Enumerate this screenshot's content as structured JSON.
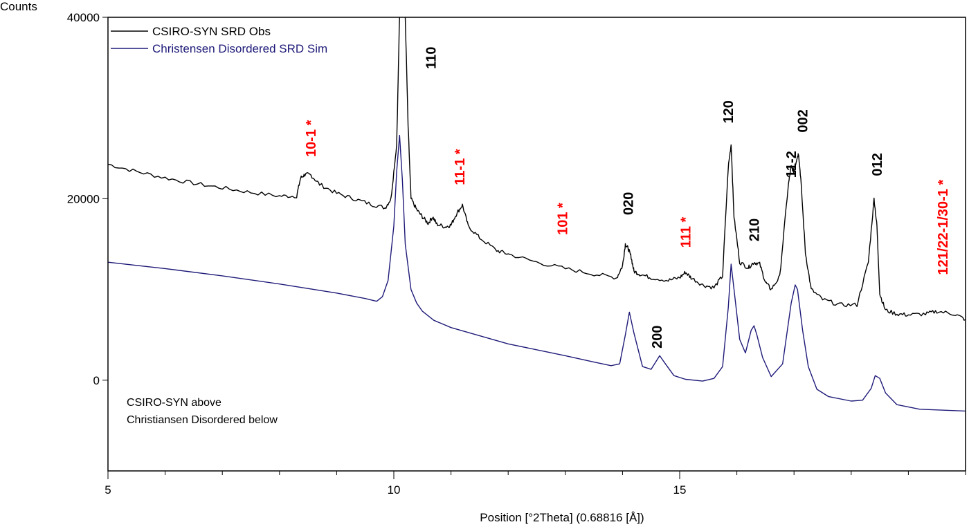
{
  "chart_data": {
    "type": "line",
    "xlabel": "Position [°2Theta] (0.68816 [Å])",
    "ylabel": "Counts",
    "xlim": [
      5,
      20
    ],
    "ylim": [
      -10000,
      40000
    ],
    "x_ticks": [
      5,
      10,
      15
    ],
    "y_ticks": [
      0,
      20000,
      40000
    ],
    "legend_position": "top-left",
    "series": [
      {
        "name": "CSIRO-SYN SRD Obs",
        "color": "#000000",
        "x": [
          5.0,
          5.5,
          6.0,
          6.5,
          7.0,
          7.5,
          8.0,
          8.3,
          8.37,
          8.45,
          8.55,
          8.7,
          9.0,
          9.3,
          9.6,
          9.85,
          9.95,
          10.05,
          10.1,
          10.15,
          10.2,
          10.25,
          10.3,
          10.4,
          10.5,
          10.6,
          10.68,
          10.75,
          10.9,
          11.0,
          11.1,
          11.2,
          11.3,
          11.5,
          11.8,
          12.0,
          12.5,
          13.0,
          13.5,
          13.9,
          14.0,
          14.05,
          14.1,
          14.15,
          14.2,
          14.3,
          14.5,
          14.8,
          15.0,
          15.1,
          15.2,
          15.4,
          15.6,
          15.75,
          15.85,
          15.9,
          15.95,
          16.05,
          16.2,
          16.3,
          16.4,
          16.5,
          16.6,
          16.75,
          16.9,
          16.95,
          17.0,
          17.05,
          17.08,
          17.12,
          17.2,
          17.3,
          17.5,
          17.8,
          18.1,
          18.3,
          18.4,
          18.45,
          18.5,
          18.6,
          18.8,
          19.0,
          19.3,
          19.5,
          19.8,
          20.0
        ],
        "y": [
          23800,
          23000,
          22300,
          21700,
          21200,
          20700,
          20300,
          20300,
          22300,
          22700,
          22600,
          21600,
          20600,
          20000,
          19400,
          19000,
          20000,
          26000,
          40000,
          42000,
          40000,
          28000,
          20000,
          18800,
          18000,
          17300,
          18000,
          17200,
          16900,
          17100,
          18400,
          19300,
          17000,
          15700,
          14300,
          13900,
          13000,
          12300,
          11700,
          11300,
          12600,
          15000,
          14500,
          13600,
          12000,
          11700,
          11300,
          11000,
          11300,
          11900,
          11300,
          10500,
          10200,
          11500,
          23500,
          26000,
          18000,
          13000,
          12400,
          13000,
          12800,
          10800,
          10000,
          11400,
          21500,
          23500,
          23000,
          24500,
          25000,
          22000,
          14000,
          10000,
          8900,
          8300,
          8300,
          13000,
          20000,
          17000,
          9500,
          7700,
          7300,
          7200,
          7300,
          7600,
          7300,
          6700
        ]
      },
      {
        "name": "Christensen Disordered SRD Sim",
        "color": "#1e1a78",
        "x": [
          5.0,
          6.0,
          7.0,
          8.0,
          9.0,
          9.5,
          9.7,
          9.8,
          9.9,
          10.0,
          10.05,
          10.1,
          10.15,
          10.2,
          10.3,
          10.4,
          10.5,
          10.7,
          11.0,
          12.0,
          13.0,
          13.5,
          13.8,
          13.95,
          14.05,
          14.12,
          14.2,
          14.35,
          14.5,
          14.6,
          14.65,
          14.75,
          14.9,
          15.1,
          15.4,
          15.6,
          15.75,
          15.85,
          15.9,
          15.95,
          16.05,
          16.15,
          16.25,
          16.3,
          16.35,
          16.45,
          16.6,
          16.8,
          16.95,
          17.02,
          17.06,
          17.15,
          17.25,
          17.4,
          17.6,
          18.0,
          18.2,
          18.35,
          18.42,
          18.5,
          18.6,
          18.8,
          19.2,
          20.0
        ],
        "y": [
          13000,
          12300,
          11500,
          10600,
          9600,
          9000,
          8700,
          9200,
          11000,
          17000,
          23000,
          27000,
          22000,
          15000,
          10000,
          8500,
          7600,
          6600,
          5800,
          4000,
          2700,
          2000,
          1600,
          1800,
          5000,
          7500,
          5200,
          1500,
          1200,
          2200,
          2700,
          1800,
          500,
          100,
          -100,
          200,
          1500,
          8000,
          12800,
          10000,
          4500,
          3000,
          5500,
          6000,
          5000,
          2500,
          400,
          1800,
          8500,
          10500,
          10000,
          5500,
          1500,
          -1000,
          -1800,
          -2300,
          -2200,
          -900,
          500,
          200,
          -1400,
          -2700,
          -3200,
          -3400
        ]
      }
    ],
    "peak_labels": [
      {
        "text": "10-1 *",
        "x": 8.55,
        "y": 24600,
        "color": "#ff0000"
      },
      {
        "text": "11-1 *",
        "x": 11.15,
        "y": 21500,
        "color": "#ff0000"
      },
      {
        "text": "101 *",
        "x": 12.95,
        "y": 16000,
        "color": "#ff0000"
      },
      {
        "text": "020",
        "x": 14.1,
        "y": 18200,
        "color": "#000000"
      },
      {
        "text": "111 *",
        "x": 15.1,
        "y": 14600,
        "color": "#ff0000"
      },
      {
        "text": "120",
        "x": 15.85,
        "y": 28300,
        "color": "#000000"
      },
      {
        "text": "210",
        "x": 16.3,
        "y": 15300,
        "color": "#000000"
      },
      {
        "text": "11-2",
        "x": 16.95,
        "y": 22300,
        "color": "#000000"
      },
      {
        "text": "002",
        "x": 17.15,
        "y": 27300,
        "color": "#000000"
      },
      {
        "text": "012",
        "x": 18.45,
        "y": 22500,
        "color": "#000000"
      },
      {
        "text": "121/22-1/30-1 *",
        "x": 19.6,
        "y": 11600,
        "color": "#ff0000"
      },
      {
        "text": "110",
        "x": 10.65,
        "y": 34300,
        "color": "#000000"
      },
      {
        "text": "200",
        "x": 14.6,
        "y": 3500,
        "color": "#000000"
      }
    ],
    "annotation_lines": [
      "CSIRO-SYN above",
      "Christiansen Disordered below"
    ]
  }
}
